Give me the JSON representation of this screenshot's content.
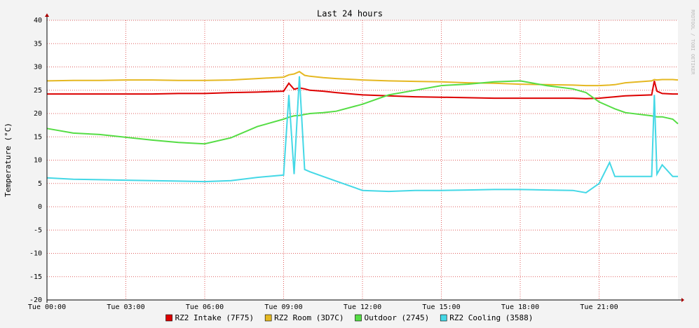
{
  "chart_data": {
    "type": "line",
    "title": "Last 24 hours",
    "y_label": "Temperature (°C)",
    "watermark": "RRDTOOL / TOBI OETIKER",
    "x": [
      0,
      1,
      2,
      3,
      4,
      5,
      6,
      7,
      8,
      9,
      9.2,
      9.4,
      9.6,
      9.8,
      10,
      10.5,
      11,
      12,
      13,
      14,
      15,
      16,
      17,
      18,
      19,
      20,
      20.5,
      21,
      21.4,
      21.6,
      22,
      23,
      23.1,
      23.2,
      23.4,
      23.8,
      24
    ],
    "xlim": [
      0,
      24
    ],
    "xticks": [
      {
        "value": 0,
        "label": "Tue 00:00"
      },
      {
        "value": 3,
        "label": "Tue 03:00"
      },
      {
        "value": 6,
        "label": "Tue 06:00"
      },
      {
        "value": 9,
        "label": "Tue 09:00"
      },
      {
        "value": 12,
        "label": "Tue 12:00"
      },
      {
        "value": 15,
        "label": "Tue 15:00"
      },
      {
        "value": 18,
        "label": "Tue 18:00"
      },
      {
        "value": 21,
        "label": "Tue 21:00"
      }
    ],
    "ylim": [
      -20,
      40
    ],
    "yticks": [
      -20,
      -15,
      -10,
      -5,
      0,
      5,
      10,
      15,
      20,
      25,
      30,
      35,
      40
    ],
    "grid": true,
    "series": [
      {
        "name": "RZ2 Intake (7F75)",
        "color": "#dd0000",
        "values": [
          24.2,
          24.2,
          24.2,
          24.2,
          24.2,
          24.3,
          24.3,
          24.5,
          24.6,
          24.8,
          26.5,
          25.2,
          25.5,
          25.3,
          25,
          24.8,
          24.5,
          24,
          23.8,
          23.6,
          23.5,
          23.4,
          23.3,
          23.3,
          23.3,
          23.3,
          23.2,
          23.3,
          23.5,
          23.6,
          23.8,
          24,
          27,
          24.8,
          24.3,
          24.2,
          24.2
        ]
      },
      {
        "name": "RZ2 Room (3D7C)",
        "color": "#e5b822",
        "values": [
          27,
          27.1,
          27.1,
          27.2,
          27.2,
          27.1,
          27.1,
          27.2,
          27.5,
          27.8,
          28.3,
          28.5,
          29,
          28.2,
          28,
          27.7,
          27.5,
          27.2,
          27,
          26.9,
          26.8,
          26.6,
          26.5,
          26.3,
          26.2,
          26.1,
          26,
          26,
          26.1,
          26.2,
          26.6,
          27,
          27.3,
          27.2,
          27.3,
          27.3,
          27.2
        ]
      },
      {
        "name": "Outdoor (2745)",
        "color": "#55dd44",
        "values": [
          16.8,
          15.8,
          15.5,
          14.9,
          14.3,
          13.8,
          13.5,
          14.8,
          17.2,
          18.8,
          19.2,
          19.5,
          19.6,
          19.8,
          20,
          20.2,
          20.5,
          22,
          24,
          25,
          26,
          26.3,
          26.8,
          27,
          26,
          25.3,
          24.5,
          22.5,
          21.5,
          21,
          20.2,
          19.5,
          19.4,
          19.3,
          19.3,
          18.8,
          17.8
        ]
      },
      {
        "name": "RZ2 Cooling (3588)",
        "color": "#44d8e6",
        "values": [
          6.2,
          5.9,
          5.8,
          5.7,
          5.6,
          5.5,
          5.4,
          5.6,
          6.3,
          6.8,
          24,
          7,
          28,
          8,
          7.5,
          6.5,
          5.5,
          3.5,
          3.3,
          3.5,
          3.5,
          3.6,
          3.7,
          3.7,
          3.6,
          3.5,
          3,
          5,
          9.5,
          6.5,
          6.5,
          6.5,
          24,
          7,
          9,
          6.5,
          6.5
        ]
      }
    ]
  }
}
